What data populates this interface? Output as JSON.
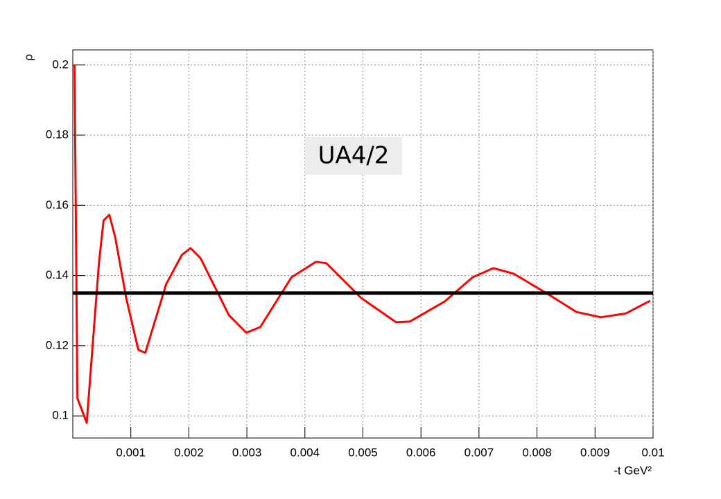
{
  "chart_data": {
    "type": "line",
    "x_label": "-t GeV²",
    "y_label": "ρ",
    "annotation": "UA4/2",
    "x": [
      3e-05,
      8e-05,
      0.00024,
      0.00045,
      0.00053,
      0.00063,
      0.00073,
      0.00092,
      0.00113,
      0.00125,
      0.00161,
      0.00188,
      0.00203,
      0.0022,
      0.00269,
      0.00299,
      0.00323,
      0.00377,
      0.00419,
      0.00437,
      0.00497,
      0.00557,
      0.00581,
      0.00641,
      0.00689,
      0.00725,
      0.0076,
      0.0082,
      0.00868,
      0.0091,
      0.00953,
      0.00995
    ],
    "series": [
      {
        "color": "#ff0000",
        "values": [
          0.2,
          0.105,
          0.098,
          0.1435,
          0.1557,
          0.1573,
          0.151,
          0.1336,
          0.1188,
          0.118,
          0.1376,
          0.1459,
          0.1478,
          0.145,
          0.1287,
          0.1237,
          0.1253,
          0.1395,
          0.1439,
          0.1435,
          0.1336,
          0.1267,
          0.1269,
          0.1326,
          0.1395,
          0.1421,
          0.1405,
          0.1346,
          0.1296,
          0.1281,
          0.1292,
          0.1328
        ]
      }
    ],
    "reference_lines": [
      {
        "y": 0.135,
        "color": "#000000"
      }
    ],
    "xlim": [
      0,
      0.01
    ],
    "ylim": [
      0.0937,
      0.2043
    ],
    "xticks": [
      0.001,
      0.002,
      0.003,
      0.004,
      0.005,
      0.006,
      0.007,
      0.008,
      0.009,
      0.01
    ],
    "yticks": [
      0.1,
      0.12,
      0.14,
      0.16,
      0.18,
      0.2
    ],
    "grid": true
  }
}
